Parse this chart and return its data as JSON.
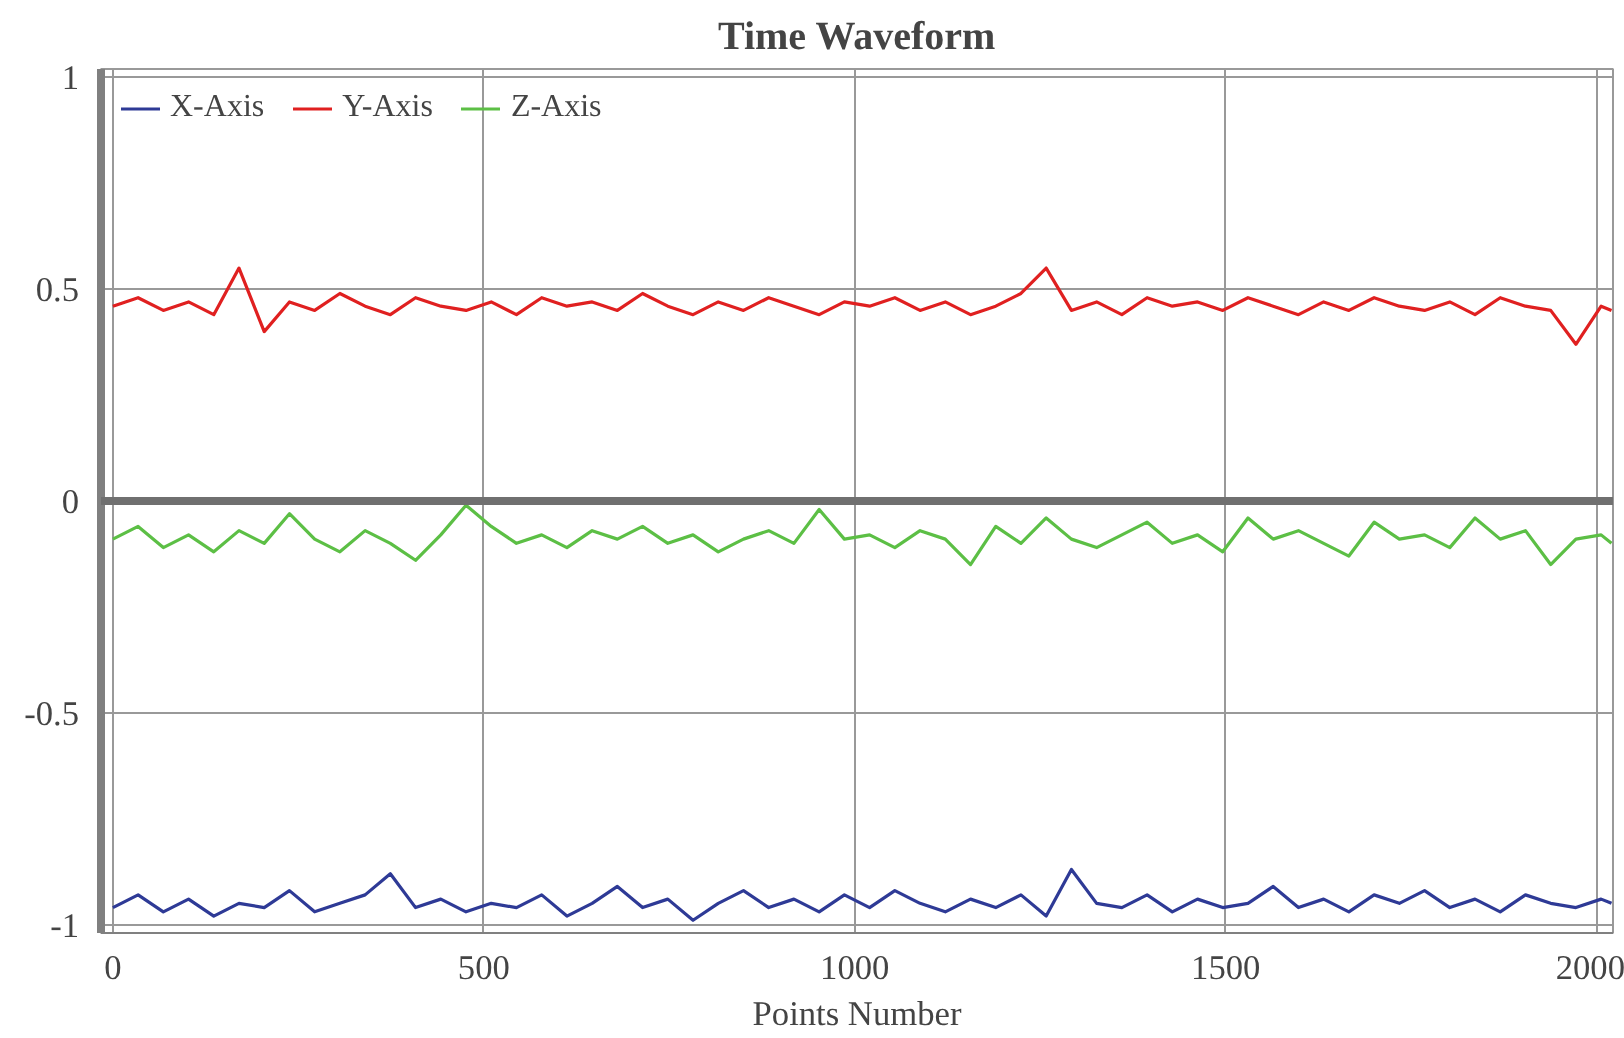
{
  "chart_data": {
    "type": "line",
    "title": "Time Waveform",
    "xlabel": "Points Number",
    "x": [
      0,
      34,
      68,
      102,
      136,
      170,
      204,
      238,
      272,
      306,
      340,
      374,
      408,
      442,
      476,
      510,
      544,
      578,
      612,
      646,
      680,
      714,
      748,
      782,
      816,
      850,
      884,
      918,
      952,
      986,
      1020,
      1054,
      1088,
      1122,
      1156,
      1190,
      1224,
      1258,
      1292,
      1326,
      1360,
      1394,
      1428,
      1462,
      1496,
      1530,
      1564,
      1598,
      1632,
      1666,
      1700,
      1734,
      1768,
      1802,
      1836,
      1870,
      1904,
      1938,
      1972,
      2006,
      2020
    ],
    "series": [
      {
        "name": "X-Axis",
        "color": "#2e3a96",
        "values": [
          -0.96,
          -0.93,
          -0.97,
          -0.94,
          -0.98,
          -0.95,
          -0.96,
          -0.92,
          -0.97,
          -0.95,
          -0.93,
          -0.88,
          -0.96,
          -0.94,
          -0.97,
          -0.95,
          -0.96,
          -0.93,
          -0.98,
          -0.95,
          -0.91,
          -0.96,
          -0.94,
          -0.99,
          -0.95,
          -0.92,
          -0.96,
          -0.94,
          -0.97,
          -0.93,
          -0.96,
          -0.92,
          -0.95,
          -0.97,
          -0.94,
          -0.96,
          -0.93,
          -0.98,
          -0.87,
          -0.95,
          -0.96,
          -0.93,
          -0.97,
          -0.94,
          -0.96,
          -0.95,
          -0.91,
          -0.96,
          -0.94,
          -0.97,
          -0.93,
          -0.95,
          -0.92,
          -0.96,
          -0.94,
          -0.97,
          -0.93,
          -0.95,
          -0.96,
          -0.94,
          -0.95
        ]
      },
      {
        "name": "Y-Axis",
        "color": "#e02020",
        "values": [
          0.46,
          0.48,
          0.45,
          0.47,
          0.44,
          0.55,
          0.4,
          0.47,
          0.45,
          0.49,
          0.46,
          0.44,
          0.48,
          0.46,
          0.45,
          0.47,
          0.44,
          0.48,
          0.46,
          0.47,
          0.45,
          0.49,
          0.46,
          0.44,
          0.47,
          0.45,
          0.48,
          0.46,
          0.44,
          0.47,
          0.46,
          0.48,
          0.45,
          0.47,
          0.44,
          0.46,
          0.49,
          0.55,
          0.45,
          0.47,
          0.44,
          0.48,
          0.46,
          0.47,
          0.45,
          0.48,
          0.46,
          0.44,
          0.47,
          0.45,
          0.48,
          0.46,
          0.45,
          0.47,
          0.44,
          0.48,
          0.46,
          0.45,
          0.37,
          0.46,
          0.45
        ]
      },
      {
        "name": "Z-Axis",
        "color": "#5cbf45",
        "values": [
          -0.09,
          -0.06,
          -0.11,
          -0.08,
          -0.12,
          -0.07,
          -0.1,
          -0.03,
          -0.09,
          -0.12,
          -0.07,
          -0.1,
          -0.14,
          -0.08,
          -0.01,
          -0.06,
          -0.1,
          -0.08,
          -0.11,
          -0.07,
          -0.09,
          -0.06,
          -0.1,
          -0.08,
          -0.12,
          -0.09,
          -0.07,
          -0.1,
          -0.02,
          -0.09,
          -0.08,
          -0.11,
          -0.07,
          -0.09,
          -0.15,
          -0.06,
          -0.1,
          -0.04,
          -0.09,
          -0.11,
          -0.08,
          -0.05,
          -0.1,
          -0.08,
          -0.12,
          -0.04,
          -0.09,
          -0.07,
          -0.1,
          -0.13,
          -0.05,
          -0.09,
          -0.08,
          -0.11,
          -0.04,
          -0.09,
          -0.07,
          -0.15,
          -0.09,
          -0.08,
          -0.1
        ]
      }
    ],
    "xlim": [
      -16,
      2022
    ],
    "xticks": [
      0,
      500,
      1000,
      1500,
      2000
    ],
    "ylim": [
      -1.02,
      1.02
    ],
    "yticks": [
      {
        "value": -1,
        "label": "-1"
      },
      {
        "value": -0.5,
        "label": "-0.5"
      },
      0,
      0.5,
      1
    ],
    "ref_lines": [
      {
        "axis": "y",
        "value": 0,
        "label": null,
        "color": "#707070"
      }
    ],
    "grid": true,
    "legend": "top left",
    "line_style": "solid",
    "marker": "none"
  }
}
